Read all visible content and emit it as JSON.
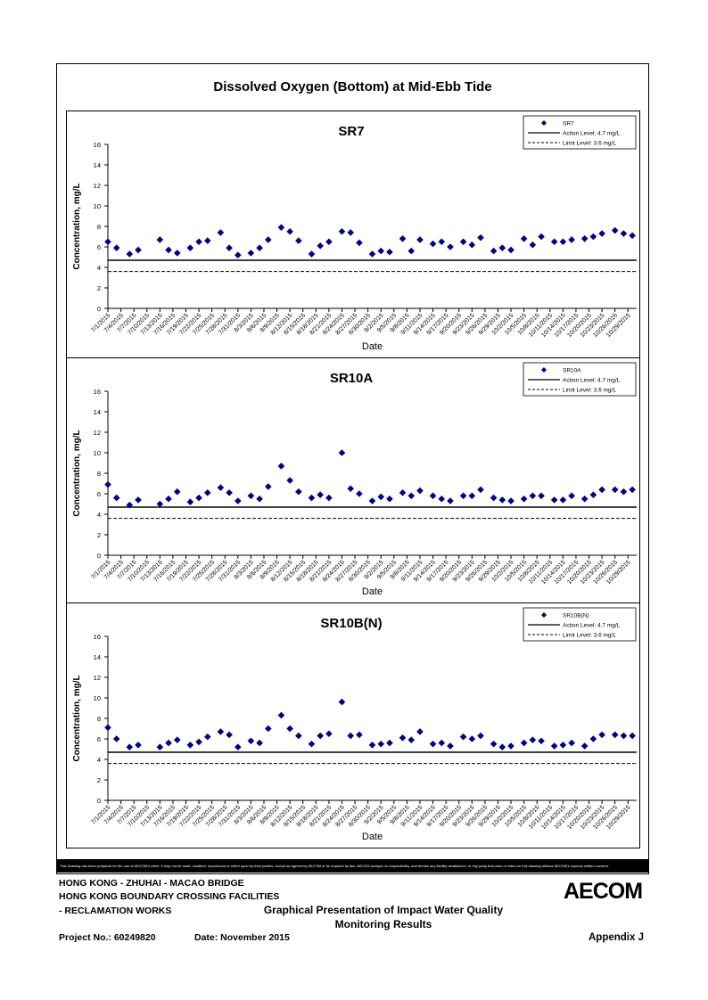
{
  "main_title": "Dissolved Oxygen (Bottom) at Mid-Ebb Tide",
  "disclaimer": "This Drawing has been prepared for the use of AECOM's client. It may not be used, modified, reproduced or relied upon by third parties, except as agreed by AECOM or as required by law. AECOM accepts no responsibility, and denies any liability whatsoever, to any party that uses or relies on this drawing without AECOM's express written consent.",
  "footer": {
    "line1": "HONG KONG - ZHUHAI - MACAO BRIDGE",
    "line2": "HONG KONG BOUNDARY CROSSING FACILITIES",
    "line3": "- RECLAMATION WORKS",
    "title_line1": "Graphical Presentation of Impact Water Quality",
    "title_line2": "Monitoring Results",
    "project": "Project No.: 60249820",
    "date": "Date: November 2015",
    "appendix": "Appendix J",
    "logo": "AECOM"
  },
  "colors": {
    "marker": "#000080",
    "line": "#000000"
  },
  "chart_data": [
    {
      "type": "scatter",
      "title": "SR7",
      "xlabel": "Date",
      "ylabel": "Concentration, mg/L",
      "ylim": [
        0,
        16
      ],
      "yticks": [
        0,
        2,
        4,
        6,
        8,
        10,
        12,
        14,
        16
      ],
      "xlim": [
        "2015-07-01",
        "2015-10-31"
      ],
      "xticks": [
        "7/1/2015",
        "7/4/2015",
        "7/7/2015",
        "7/10/2015",
        "7/13/2015",
        "7/16/2015",
        "7/19/2015",
        "7/22/2015",
        "7/25/2015",
        "7/28/2015",
        "7/31/2015",
        "8/3/2015",
        "8/6/2015",
        "8/9/2015",
        "8/12/2015",
        "8/15/2015",
        "8/18/2015",
        "8/21/2015",
        "8/24/2015",
        "8/27/2015",
        "8/30/2015",
        "9/2/2015",
        "9/5/2015",
        "9/8/2015",
        "9/11/2015",
        "9/14/2015",
        "9/17/2015",
        "9/20/2015",
        "9/23/2015",
        "9/26/2015",
        "9/29/2015",
        "10/2/2015",
        "10/5/2015",
        "10/8/2015",
        "10/11/2015",
        "10/14/2015",
        "10/17/2015",
        "10/20/2015",
        "10/23/2015",
        "10/26/2015",
        "10/29/2015"
      ],
      "legend_position": "top-right",
      "series": [
        {
          "name": "SR7",
          "x": [
            "2015-07-01",
            "2015-07-03",
            "2015-07-06",
            "2015-07-08",
            "2015-07-13",
            "2015-07-15",
            "2015-07-17",
            "2015-07-20",
            "2015-07-22",
            "2015-07-24",
            "2015-07-27",
            "2015-07-29",
            "2015-07-31",
            "2015-08-03",
            "2015-08-05",
            "2015-08-07",
            "2015-08-10",
            "2015-08-12",
            "2015-08-14",
            "2015-08-17",
            "2015-08-19",
            "2015-08-21",
            "2015-08-24",
            "2015-08-26",
            "2015-08-28",
            "2015-08-31",
            "2015-09-02",
            "2015-09-04",
            "2015-09-07",
            "2015-09-09",
            "2015-09-11",
            "2015-09-14",
            "2015-09-16",
            "2015-09-18",
            "2015-09-21",
            "2015-09-23",
            "2015-09-25",
            "2015-09-28",
            "2015-09-30",
            "2015-10-02",
            "2015-10-05",
            "2015-10-07",
            "2015-10-09",
            "2015-10-12",
            "2015-10-14",
            "2015-10-16",
            "2015-10-19",
            "2015-10-21",
            "2015-10-23",
            "2015-10-26",
            "2015-10-28",
            "2015-10-30"
          ],
          "y": [
            6.5,
            5.9,
            5.3,
            5.7,
            6.7,
            5.7,
            5.4,
            5.9,
            6.5,
            6.6,
            7.4,
            5.9,
            5.2,
            5.4,
            5.9,
            6.7,
            7.9,
            7.5,
            6.6,
            5.3,
            6.1,
            6.5,
            7.5,
            7.4,
            6.4,
            5.3,
            5.6,
            5.5,
            6.8,
            5.6,
            6.7,
            6.3,
            6.5,
            6.0,
            6.5,
            6.2,
            6.9,
            5.6,
            5.9,
            5.7,
            6.8,
            6.2,
            7.0,
            6.5,
            6.5,
            6.7,
            6.8,
            7.0,
            7.3,
            7.6,
            7.3,
            7.1
          ]
        },
        {
          "name": "Action Level: 4.7 mg/L",
          "y": 4.7,
          "style": "solid"
        },
        {
          "name": "Limit Level: 3.6 mg/L",
          "y": 3.6,
          "style": "dashed"
        }
      ]
    },
    {
      "type": "scatter",
      "title": "SR10A",
      "xlabel": "Date",
      "ylabel": "Concentration, mg/L",
      "ylim": [
        0,
        16
      ],
      "yticks": [
        0,
        2,
        4,
        6,
        8,
        10,
        12,
        14,
        16
      ],
      "xlim": [
        "2015-07-01",
        "2015-10-31"
      ],
      "xticks": [
        "7/1/2015",
        "7/4/2015",
        "7/7/2015",
        "7/10/2015",
        "7/13/2015",
        "7/16/2015",
        "7/19/2015",
        "7/22/2015",
        "7/25/2015",
        "7/28/2015",
        "7/31/2015",
        "8/3/2015",
        "8/6/2015",
        "8/9/2015",
        "8/12/2015",
        "8/15/2015",
        "8/18/2015",
        "8/21/2015",
        "8/24/2015",
        "8/27/2015",
        "8/30/2015",
        "9/2/2015",
        "9/5/2015",
        "9/8/2015",
        "9/11/2015",
        "9/14/2015",
        "9/17/2015",
        "9/20/2015",
        "9/23/2015",
        "9/26/2015",
        "9/29/2015",
        "10/2/2015",
        "10/5/2015",
        "10/8/2015",
        "10/11/2015",
        "10/14/2015",
        "10/17/2015",
        "10/20/2015",
        "10/23/2015",
        "10/26/2015",
        "10/29/2015"
      ],
      "legend_position": "top-right",
      "series": [
        {
          "name": "SR10A",
          "x": [
            "2015-07-01",
            "2015-07-03",
            "2015-07-06",
            "2015-07-08",
            "2015-07-13",
            "2015-07-15",
            "2015-07-17",
            "2015-07-20",
            "2015-07-22",
            "2015-07-24",
            "2015-07-27",
            "2015-07-29",
            "2015-07-31",
            "2015-08-03",
            "2015-08-05",
            "2015-08-07",
            "2015-08-10",
            "2015-08-12",
            "2015-08-14",
            "2015-08-17",
            "2015-08-19",
            "2015-08-21",
            "2015-08-24",
            "2015-08-26",
            "2015-08-28",
            "2015-08-31",
            "2015-09-02",
            "2015-09-04",
            "2015-09-07",
            "2015-09-09",
            "2015-09-11",
            "2015-09-14",
            "2015-09-16",
            "2015-09-18",
            "2015-09-21",
            "2015-09-23",
            "2015-09-25",
            "2015-09-28",
            "2015-09-30",
            "2015-10-02",
            "2015-10-05",
            "2015-10-07",
            "2015-10-09",
            "2015-10-12",
            "2015-10-14",
            "2015-10-16",
            "2015-10-19",
            "2015-10-21",
            "2015-10-23",
            "2015-10-26",
            "2015-10-28",
            "2015-10-30"
          ],
          "y": [
            6.9,
            5.6,
            4.9,
            5.4,
            5.0,
            5.5,
            6.2,
            5.2,
            5.6,
            6.1,
            6.6,
            6.1,
            5.3,
            5.8,
            5.5,
            6.7,
            8.7,
            7.3,
            6.2,
            5.6,
            5.9,
            5.6,
            10.0,
            6.5,
            6.0,
            5.3,
            5.7,
            5.5,
            6.1,
            5.8,
            6.3,
            5.8,
            5.5,
            5.3,
            5.8,
            5.8,
            6.4,
            5.6,
            5.4,
            5.3,
            5.5,
            5.8,
            5.8,
            5.4,
            5.4,
            5.8,
            5.5,
            5.9,
            6.4,
            6.4,
            6.2,
            6.4
          ]
        },
        {
          "name": "Action Level: 4.7 mg/L",
          "y": 4.7,
          "style": "solid"
        },
        {
          "name": "Limit Level: 3.6 mg/L",
          "y": 3.6,
          "style": "dashed"
        }
      ]
    },
    {
      "type": "scatter",
      "title": "SR10B(N)",
      "xlabel": "Date",
      "ylabel": "Concentration, mg/L",
      "ylim": [
        0,
        16
      ],
      "yticks": [
        0,
        2,
        4,
        6,
        8,
        10,
        12,
        14,
        16
      ],
      "xlim": [
        "2015-07-01",
        "2015-10-31"
      ],
      "xticks": [
        "7/1/2015",
        "7/4/2015",
        "7/7/2015",
        "7/10/2015",
        "7/13/2015",
        "7/16/2015",
        "7/19/2015",
        "7/22/2015",
        "7/25/2015",
        "7/28/2015",
        "7/31/2015",
        "8/3/2015",
        "8/6/2015",
        "8/9/2015",
        "8/12/2015",
        "8/15/2015",
        "8/18/2015",
        "8/21/2015",
        "8/24/2015",
        "8/27/2015",
        "8/30/2015",
        "9/2/2015",
        "9/5/2015",
        "9/8/2015",
        "9/11/2015",
        "9/14/2015",
        "9/17/2015",
        "9/20/2015",
        "9/23/2015",
        "9/26/2015",
        "9/29/2015",
        "10/2/2015",
        "10/5/2015",
        "10/8/2015",
        "10/11/2015",
        "10/14/2015",
        "10/17/2015",
        "10/20/2015",
        "10/23/2015",
        "10/26/2015",
        "10/29/2015"
      ],
      "legend_position": "top-right",
      "series": [
        {
          "name": "SR10B(N)",
          "x": [
            "2015-07-01",
            "2015-07-03",
            "2015-07-06",
            "2015-07-08",
            "2015-07-13",
            "2015-07-15",
            "2015-07-17",
            "2015-07-20",
            "2015-07-22",
            "2015-07-24",
            "2015-07-27",
            "2015-07-29",
            "2015-07-31",
            "2015-08-03",
            "2015-08-05",
            "2015-08-07",
            "2015-08-10",
            "2015-08-12",
            "2015-08-14",
            "2015-08-17",
            "2015-08-19",
            "2015-08-21",
            "2015-08-24",
            "2015-08-26",
            "2015-08-28",
            "2015-08-31",
            "2015-09-02",
            "2015-09-04",
            "2015-09-07",
            "2015-09-09",
            "2015-09-11",
            "2015-09-14",
            "2015-09-16",
            "2015-09-18",
            "2015-09-21",
            "2015-09-23",
            "2015-09-25",
            "2015-09-28",
            "2015-09-30",
            "2015-10-02",
            "2015-10-05",
            "2015-10-07",
            "2015-10-09",
            "2015-10-12",
            "2015-10-14",
            "2015-10-16",
            "2015-10-19",
            "2015-10-21",
            "2015-10-23",
            "2015-10-26",
            "2015-10-28",
            "2015-10-30"
          ],
          "y": [
            7.1,
            6.0,
            5.2,
            5.4,
            5.2,
            5.6,
            5.9,
            5.4,
            5.7,
            6.2,
            6.7,
            6.4,
            5.2,
            5.8,
            5.6,
            7.0,
            8.3,
            7.0,
            6.3,
            5.5,
            6.3,
            6.5,
            9.6,
            6.3,
            6.4,
            5.4,
            5.5,
            5.6,
            6.1,
            5.9,
            6.7,
            5.5,
            5.6,
            5.3,
            6.2,
            6.0,
            6.3,
            5.5,
            5.2,
            5.3,
            5.6,
            5.9,
            5.8,
            5.3,
            5.4,
            5.6,
            5.3,
            6.0,
            6.4,
            6.4,
            6.3,
            6.3
          ]
        },
        {
          "name": "Action Level: 4.7 mg/L",
          "y": 4.7,
          "style": "solid"
        },
        {
          "name": "Limit Level: 3.6 mg/L",
          "y": 3.6,
          "style": "dashed"
        }
      ]
    }
  ]
}
